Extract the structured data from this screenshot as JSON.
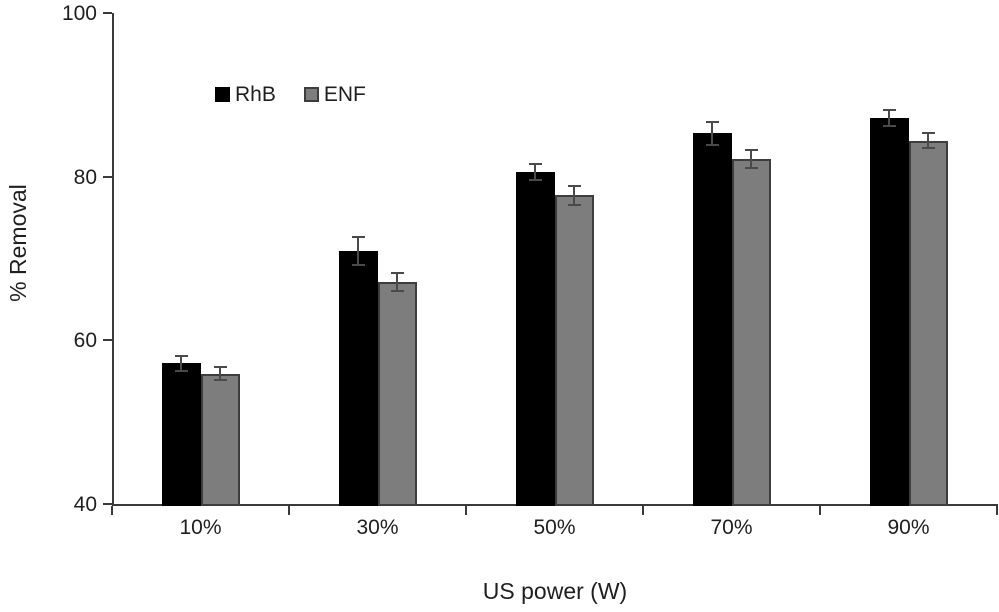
{
  "chart_data": {
    "type": "bar",
    "title": "",
    "xlabel": "US power (W)",
    "ylabel": "% Removal",
    "categories": [
      "10%",
      "30%",
      "50%",
      "70%",
      "90%"
    ],
    "series": [
      {
        "name": "RhB",
        "color": "#000000",
        "values": [
          57.2,
          70.9,
          80.6,
          85.3,
          87.2
        ],
        "errors": [
          0.9,
          1.7,
          1.0,
          1.4,
          1.0
        ]
      },
      {
        "name": "ENF",
        "color": "#7d7d7d",
        "values": [
          55.9,
          67.1,
          77.7,
          82.2,
          84.4
        ],
        "errors": [
          0.8,
          1.1,
          1.2,
          1.1,
          0.9
        ]
      }
    ],
    "ylim": [
      40,
      100
    ],
    "yticks": [
      40,
      60,
      80,
      100
    ],
    "grid": false,
    "legend_position": "upper-left-inside",
    "error_bars": true
  },
  "style_colors": {
    "axis": "#3a3a3a",
    "text": "#1f1f1f",
    "error_bar": "#4a4a4a",
    "gray_bar_border": "#3d3d3d"
  }
}
